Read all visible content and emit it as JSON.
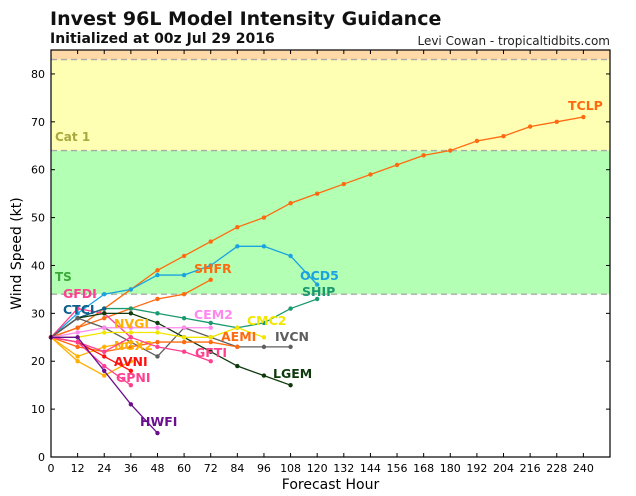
{
  "title": "Invest 96L Model Intensity Guidance",
  "subtitle": "Initialized at 00z Jul 29 2016",
  "credit": "Levi Cowan - tropicaltidbits.com",
  "chart_data": {
    "type": "line",
    "xlabel": "Forecast Hour",
    "ylabel": "Wind Speed (kt)",
    "xlim": [
      0,
      252
    ],
    "ylim": [
      0,
      85
    ],
    "xticks": [
      0,
      12,
      24,
      36,
      48,
      60,
      72,
      84,
      96,
      108,
      120,
      132,
      144,
      156,
      168,
      180,
      192,
      204,
      216,
      228,
      240
    ],
    "yticks": [
      0,
      10,
      20,
      30,
      40,
      50,
      60,
      70,
      80
    ],
    "grid": false,
    "bands": [
      {
        "name": "TS",
        "from": 34,
        "to": 64,
        "color": "#b3ffb3"
      },
      {
        "name": "Cat 1",
        "from": 64,
        "to": 83,
        "color": "#ffffb3"
      },
      {
        "name": "",
        "from": 83,
        "to": 85,
        "color": "#ffd9a8"
      }
    ],
    "band_label_colors": {
      "TS": "#3aa83a",
      "Cat 1": "#a8a840"
    },
    "series": [
      {
        "name": "TCLP",
        "color": "#ff6a10",
        "x": [
          0,
          12,
          24,
          36,
          48,
          60,
          72,
          84,
          96,
          108,
          120,
          132,
          144,
          156,
          168,
          180,
          192,
          204,
          216,
          228,
          240
        ],
        "y": [
          25,
          27,
          31,
          35,
          39,
          42,
          45,
          48,
          50,
          53,
          55,
          57,
          59,
          61,
          63,
          64,
          66,
          67,
          69,
          70,
          71
        ]
      },
      {
        "name": "OCD5",
        "color": "#1aa3e0",
        "x": [
          0,
          12,
          24,
          36,
          48,
          60,
          72,
          84,
          96,
          108,
          120
        ],
        "y": [
          25,
          30,
          34,
          35,
          38,
          38,
          40,
          44,
          44,
          42,
          36
        ]
      },
      {
        "name": "SHFR",
        "color": "#ff6a10",
        "x": [
          0,
          12,
          24,
          36,
          48,
          60,
          72
        ],
        "y": [
          25,
          27,
          29,
          31,
          33,
          34,
          37
        ]
      },
      {
        "name": "SHIP",
        "color": "#1a9a6e",
        "x": [
          0,
          12,
          24,
          36,
          48,
          60,
          72,
          84,
          96,
          108,
          120
        ],
        "y": [
          25,
          29,
          31,
          31,
          30,
          29,
          28,
          27,
          28,
          31,
          33
        ]
      },
      {
        "name": "GFDI",
        "color": "#ff4090",
        "x": [
          0,
          12,
          24,
          36
        ],
        "y": [
          25,
          31,
          30,
          25
        ]
      },
      {
        "name": "CTCI",
        "color": "#0d5f8c",
        "x": [
          0,
          12,
          24
        ],
        "y": [
          25,
          29,
          31
        ]
      },
      {
        "name": "LGEM",
        "color": "#0e3a0e",
        "x": [
          0,
          12,
          24,
          36,
          48,
          60,
          72,
          84,
          96,
          108
        ],
        "y": [
          25,
          29,
          30,
          30,
          28,
          25,
          22,
          19,
          17,
          15
        ]
      },
      {
        "name": "IVCN",
        "color": "#5e5e5e",
        "x": [
          0,
          12,
          24,
          36,
          48,
          60,
          72,
          84,
          96,
          108
        ],
        "y": [
          25,
          29,
          27,
          24,
          21,
          27,
          25,
          23,
          23,
          23
        ]
      },
      {
        "name": "CEM2",
        "color": "#ff88ee",
        "x": [
          0,
          12,
          24,
          36,
          48,
          60,
          72
        ],
        "y": [
          25,
          26,
          27,
          27,
          27,
          27,
          27
        ]
      },
      {
        "name": "CMC2",
        "color": "#f2e600",
        "x": [
          0,
          12,
          24,
          36,
          48,
          60,
          72,
          84,
          96
        ],
        "y": [
          25,
          25,
          26,
          26,
          26,
          25,
          25,
          27,
          25
        ]
      },
      {
        "name": "AEMI",
        "color": "#ff6a10",
        "x": [
          0,
          12,
          24,
          36,
          48,
          60,
          72,
          84
        ],
        "y": [
          25,
          23,
          22,
          23,
          24,
          24,
          24,
          23
        ]
      },
      {
        "name": "NVGI",
        "color": "#ffb000",
        "x": [
          0,
          12,
          24,
          36
        ],
        "y": [
          25,
          21,
          23,
          24
        ]
      },
      {
        "name": "NGX2",
        "color": "#ffb000",
        "x": [
          0,
          12,
          24,
          36
        ],
        "y": [
          25,
          20,
          17,
          20
        ]
      },
      {
        "name": "GFTI",
        "color": "#ff4090",
        "x": [
          0,
          12,
          24,
          36,
          48,
          60,
          72
        ],
        "y": [
          25,
          24,
          22,
          25,
          23,
          22,
          20
        ]
      },
      {
        "name": "AVNI",
        "color": "#ff1010",
        "x": [
          0,
          12,
          24,
          36
        ],
        "y": [
          25,
          24,
          21,
          18
        ]
      },
      {
        "name": "GPNI",
        "color": "#ff4090",
        "x": [
          0,
          12,
          24,
          36
        ],
        "y": [
          25,
          24,
          19,
          15
        ]
      },
      {
        "name": "HWFI",
        "color": "#6a0f8e",
        "x": [
          0,
          12,
          24,
          36,
          48
        ],
        "y": [
          25,
          25,
          18,
          11,
          5
        ]
      }
    ]
  }
}
